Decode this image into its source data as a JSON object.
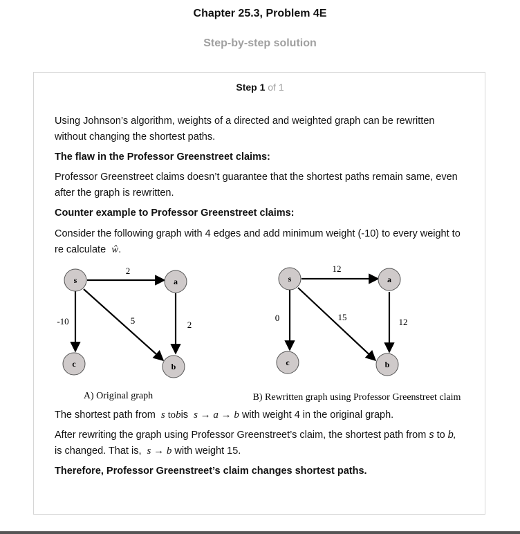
{
  "header": {
    "title": "Chapter 25.3, Problem 4E",
    "subtitle": "Step-by-step solution"
  },
  "step": {
    "label": "Step 1",
    "of": "of 1"
  },
  "content": {
    "p1": "Using Johnson’s algorithm, weights of a directed and weighted graph can be rewritten without changing the shortest paths.",
    "h1": "The flaw in the Professor Greenstreet claims:",
    "p2": "Professor Greenstreet claims doesn’t guarantee that the shortest paths remain same, even after the graph is rewritten.",
    "h2": "Counter example to Professor Greenstreet claims:",
    "p3": "Consider the following graph with 4 edges and add minimum weight (-10) to every weight to re calculate",
    "p3_math": "ŵ",
    "p3_end": ".",
    "p4_a": "The shortest path from",
    "p4_m1": "s",
    "p4_to": "to",
    "p4_m2": "b",
    "p4_is": "is",
    "p4_m3": "s → a → b",
    "p4_b": "with weight 4 in the original graph.",
    "p5_a": "After rewriting the graph using Professor Greenstreet’s claim, the shortest path from",
    "p5_s": "s",
    "p5_to": "to",
    "p5_b": "b,",
    "p5_is": "is changed. That is,",
    "p5_m": "s → b",
    "p5_c": "with weight 15.",
    "conclusion": "Therefore, Professor Greenstreet’s claim changes shortest paths."
  },
  "graph_a": {
    "caption": "A) Original graph",
    "nodes": {
      "s": "s",
      "a": "a",
      "b": "b",
      "c": "c"
    },
    "weights": {
      "sa": "2",
      "sc": "-10",
      "sb": "5",
      "ab": "2"
    }
  },
  "graph_b": {
    "caption": "B) Rewritten graph using Professor Greenstreet claim",
    "nodes": {
      "s": "s",
      "a": "a",
      "b": "b",
      "c": "c"
    },
    "weights": {
      "sa": "12",
      "sc": "0",
      "sb": "15",
      "ab": "12"
    }
  },
  "colors": {
    "node_fill": "#cfcaca",
    "muted": "#a0a0a0",
    "border": "#d6d6d6"
  }
}
